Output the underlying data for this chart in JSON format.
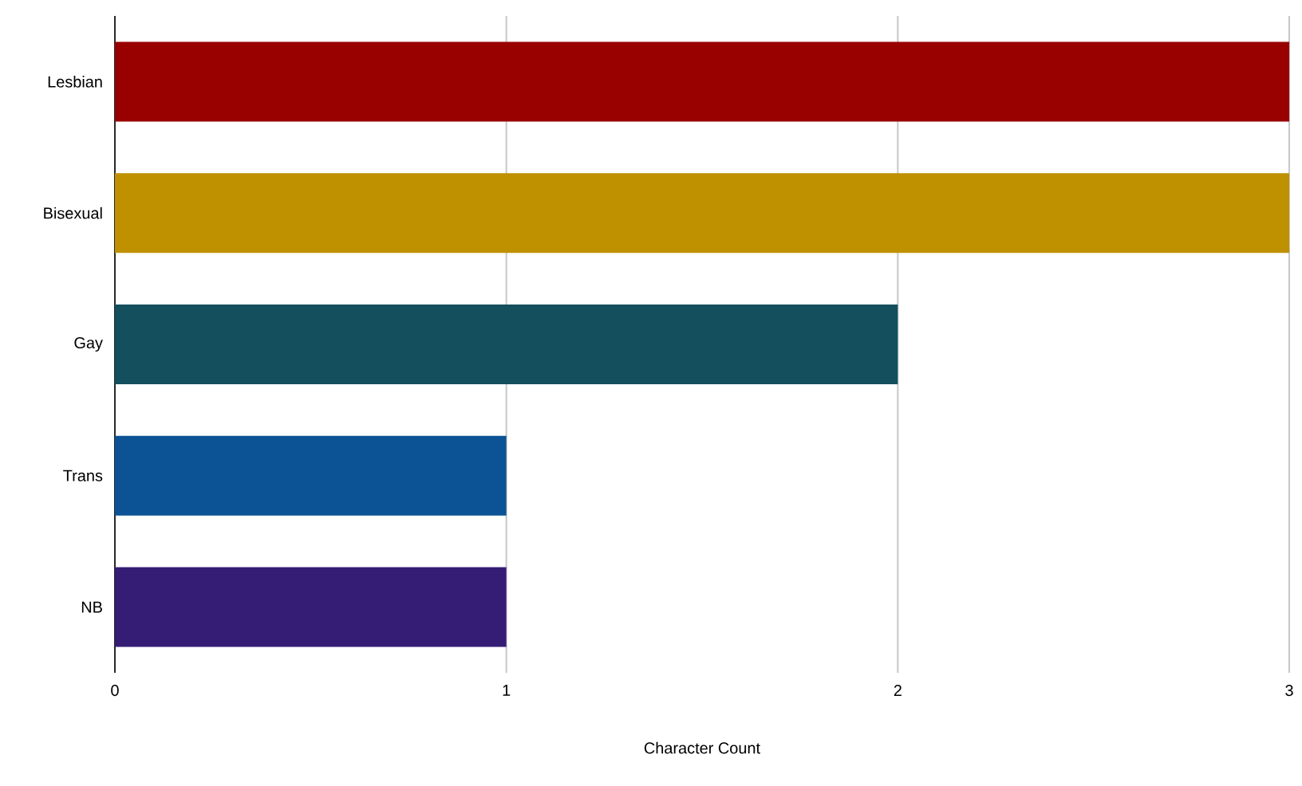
{
  "chart_data": {
    "type": "bar",
    "orientation": "horizontal",
    "xlabel": "Character Count",
    "categories": [
      "Lesbian",
      "Bisexual",
      "Gay",
      "Trans",
      "NB"
    ],
    "values": [
      3,
      3,
      2,
      1,
      1
    ],
    "colors": [
      "#990000",
      "#bf9000",
      "#134f5c",
      "#0b5394",
      "#351c75"
    ],
    "xlim": [
      0,
      3
    ],
    "xticks": [
      0,
      1,
      2,
      3
    ],
    "grid": "x"
  }
}
